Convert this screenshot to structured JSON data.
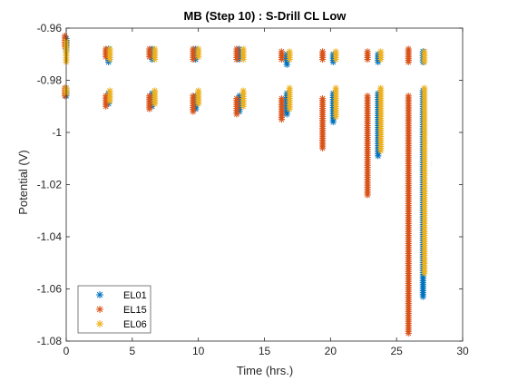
{
  "chart_data": {
    "type": "scatter",
    "title": "MB (Step 10) : S-Drill CL Low",
    "xlabel": "Time (hrs.)",
    "ylabel": "Potential (V)",
    "xlim": [
      0,
      30
    ],
    "ylim": [
      -1.08,
      -0.96
    ],
    "xticks": [
      0,
      5,
      10,
      15,
      20,
      25,
      30
    ],
    "yticks": [
      -1.08,
      -1.06,
      -1.04,
      -1.02,
      -1.0,
      -0.98,
      -0.96
    ],
    "xtick_labels": [
      "0",
      "5",
      "10",
      "15",
      "20",
      "25",
      "30"
    ],
    "ytick_labels": [
      "-1.08",
      "-1.06",
      "-1.04",
      "-1.02",
      "-1",
      "-0.98",
      "-0.96"
    ],
    "grid": false,
    "legend_position": "bottom-left",
    "marker": "asterisk",
    "series": [
      {
        "name": "EL01",
        "color": "#0072BD",
        "clusters": [
          {
            "x": 0.0,
            "high": [
              -0.964,
              -0.969
            ],
            "low": [
              -0.983,
              -0.986
            ]
          },
          {
            "x": 3.2,
            "high": [
              -0.968,
              -0.973
            ],
            "low": [
              -0.985,
              -0.989
            ]
          },
          {
            "x": 6.5,
            "high": [
              -0.968,
              -0.972
            ],
            "low": [
              -0.985,
              -0.99
            ]
          },
          {
            "x": 9.8,
            "high": [
              -0.968,
              -0.972
            ],
            "low": [
              -0.986,
              -0.991
            ]
          },
          {
            "x": 13.1,
            "high": [
              -0.968,
              -0.972
            ],
            "low": [
              -0.986,
              -0.992
            ]
          },
          {
            "x": 16.7,
            "high": [
              -0.97,
              -0.974
            ],
            "low": [
              -0.985,
              -0.993
            ]
          },
          {
            "x": 20.2,
            "high": [
              -0.97,
              -0.973
            ],
            "low": [
              -0.985,
              -0.996
            ]
          },
          {
            "x": 23.6,
            "high": [
              -0.97,
              -0.973
            ],
            "low": [
              -0.985,
              -1.009
            ]
          },
          {
            "x": 27.0,
            "high": [
              -0.969,
              -0.973
            ],
            "low": [
              -0.984,
              -1.063
            ]
          }
        ]
      },
      {
        "name": "EL15",
        "color": "#D95319",
        "clusters": [
          {
            "x": -0.1,
            "high": [
              -0.963,
              -0.967
            ],
            "low": [
              -0.983,
              -0.986
            ]
          },
          {
            "x": 3.0,
            "high": [
              -0.968,
              -0.971
            ],
            "low": [
              -0.986,
              -0.99
            ]
          },
          {
            "x": 6.3,
            "high": [
              -0.968,
              -0.971
            ],
            "low": [
              -0.986,
              -0.991
            ]
          },
          {
            "x": 9.6,
            "high": [
              -0.968,
              -0.972
            ],
            "low": [
              -0.986,
              -0.992
            ]
          },
          {
            "x": 12.9,
            "high": [
              -0.968,
              -0.972
            ],
            "low": [
              -0.987,
              -0.993
            ]
          },
          {
            "x": 16.3,
            "high": [
              -0.969,
              -0.972
            ],
            "low": [
              -0.987,
              -0.995
            ]
          },
          {
            "x": 19.4,
            "high": [
              -0.969,
              -0.972
            ],
            "low": [
              -0.987,
              -1.006
            ]
          },
          {
            "x": 22.8,
            "high": [
              -0.969,
              -0.972
            ],
            "low": [
              -0.986,
              -1.024
            ]
          },
          {
            "x": 25.9,
            "high": [
              -0.968,
              -0.973
            ],
            "low": [
              -0.986,
              -1.077
            ]
          }
        ]
      },
      {
        "name": "EL06",
        "color": "#EDB120",
        "clusters": [
          {
            "x": 0.0,
            "high": [
              -0.965,
              -0.973
            ],
            "low": [
              -0.983,
              -0.985
            ]
          },
          {
            "x": 3.3,
            "high": [
              -0.968,
              -0.972
            ],
            "low": [
              -0.984,
              -0.988
            ]
          },
          {
            "x": 6.7,
            "high": [
              -0.968,
              -0.972
            ],
            "low": [
              -0.984,
              -0.989
            ]
          },
          {
            "x": 10.0,
            "high": [
              -0.968,
              -0.971
            ],
            "low": [
              -0.984,
              -0.989
            ]
          },
          {
            "x": 13.4,
            "high": [
              -0.968,
              -0.972
            ],
            "low": [
              -0.984,
              -0.99
            ]
          },
          {
            "x": 16.9,
            "high": [
              -0.969,
              -0.972
            ],
            "low": [
              -0.983,
              -0.991
            ]
          },
          {
            "x": 20.4,
            "high": [
              -0.969,
              -0.972
            ],
            "low": [
              -0.983,
              -0.994
            ]
          },
          {
            "x": 23.8,
            "high": [
              -0.969,
              -0.972
            ],
            "low": [
              -0.983,
              -1.007
            ]
          },
          {
            "x": 27.1,
            "high": [
              -0.969,
              -0.973
            ],
            "low": [
              -0.983,
              -1.054
            ]
          }
        ]
      }
    ]
  }
}
